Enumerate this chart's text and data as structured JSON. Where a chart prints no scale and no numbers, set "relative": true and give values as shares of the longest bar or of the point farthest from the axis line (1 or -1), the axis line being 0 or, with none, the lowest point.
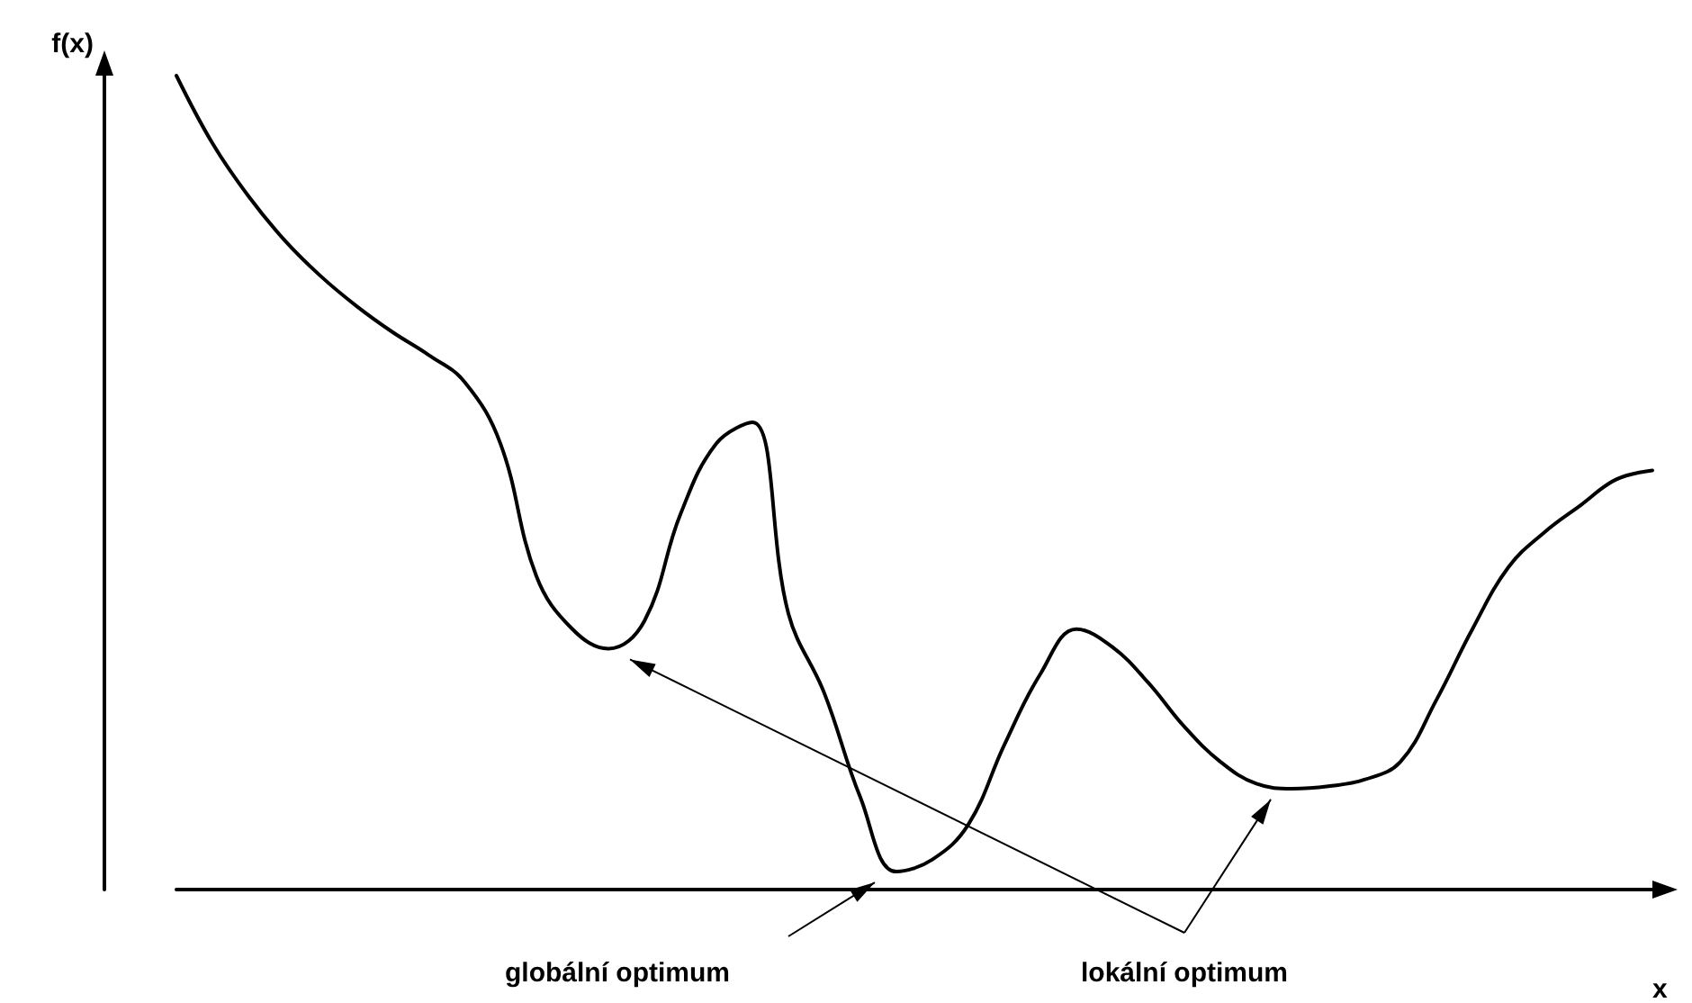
{
  "chart_data": {
    "type": "line",
    "relative": true,
    "xlabel": "x",
    "ylabel": "f(x)",
    "color": "#000000",
    "annotations": [
      "globální optimum",
      "lokální optimum"
    ],
    "categories": [
      null,
      null,
      null,
      null,
      null,
      null,
      null,
      null,
      null,
      null,
      null,
      null,
      null,
      null,
      null,
      null,
      null,
      null,
      null,
      null,
      null,
      null,
      null,
      null,
      null,
      null,
      null,
      null,
      null,
      null,
      null,
      null,
      null,
      null,
      null,
      null,
      null,
      null,
      null,
      null,
      null,
      null
    ],
    "values": [
      1.0,
      0.917,
      0.852,
      0.798,
      0.754,
      0.717,
      0.685,
      0.657,
      0.624,
      0.548,
      0.385,
      0.32,
      0.296,
      0.33,
      0.461,
      0.548,
      0.574,
      0.339,
      0.241,
      0.113,
      0.022,
      0.037,
      0.08,
      0.178,
      0.265,
      0.32,
      0.298,
      0.254,
      0.2,
      0.157,
      0.13,
      0.124,
      0.127,
      0.135,
      0.157,
      0.233,
      0.32,
      0.396,
      0.439,
      0.472,
      0.504,
      0.515
    ]
  }
}
